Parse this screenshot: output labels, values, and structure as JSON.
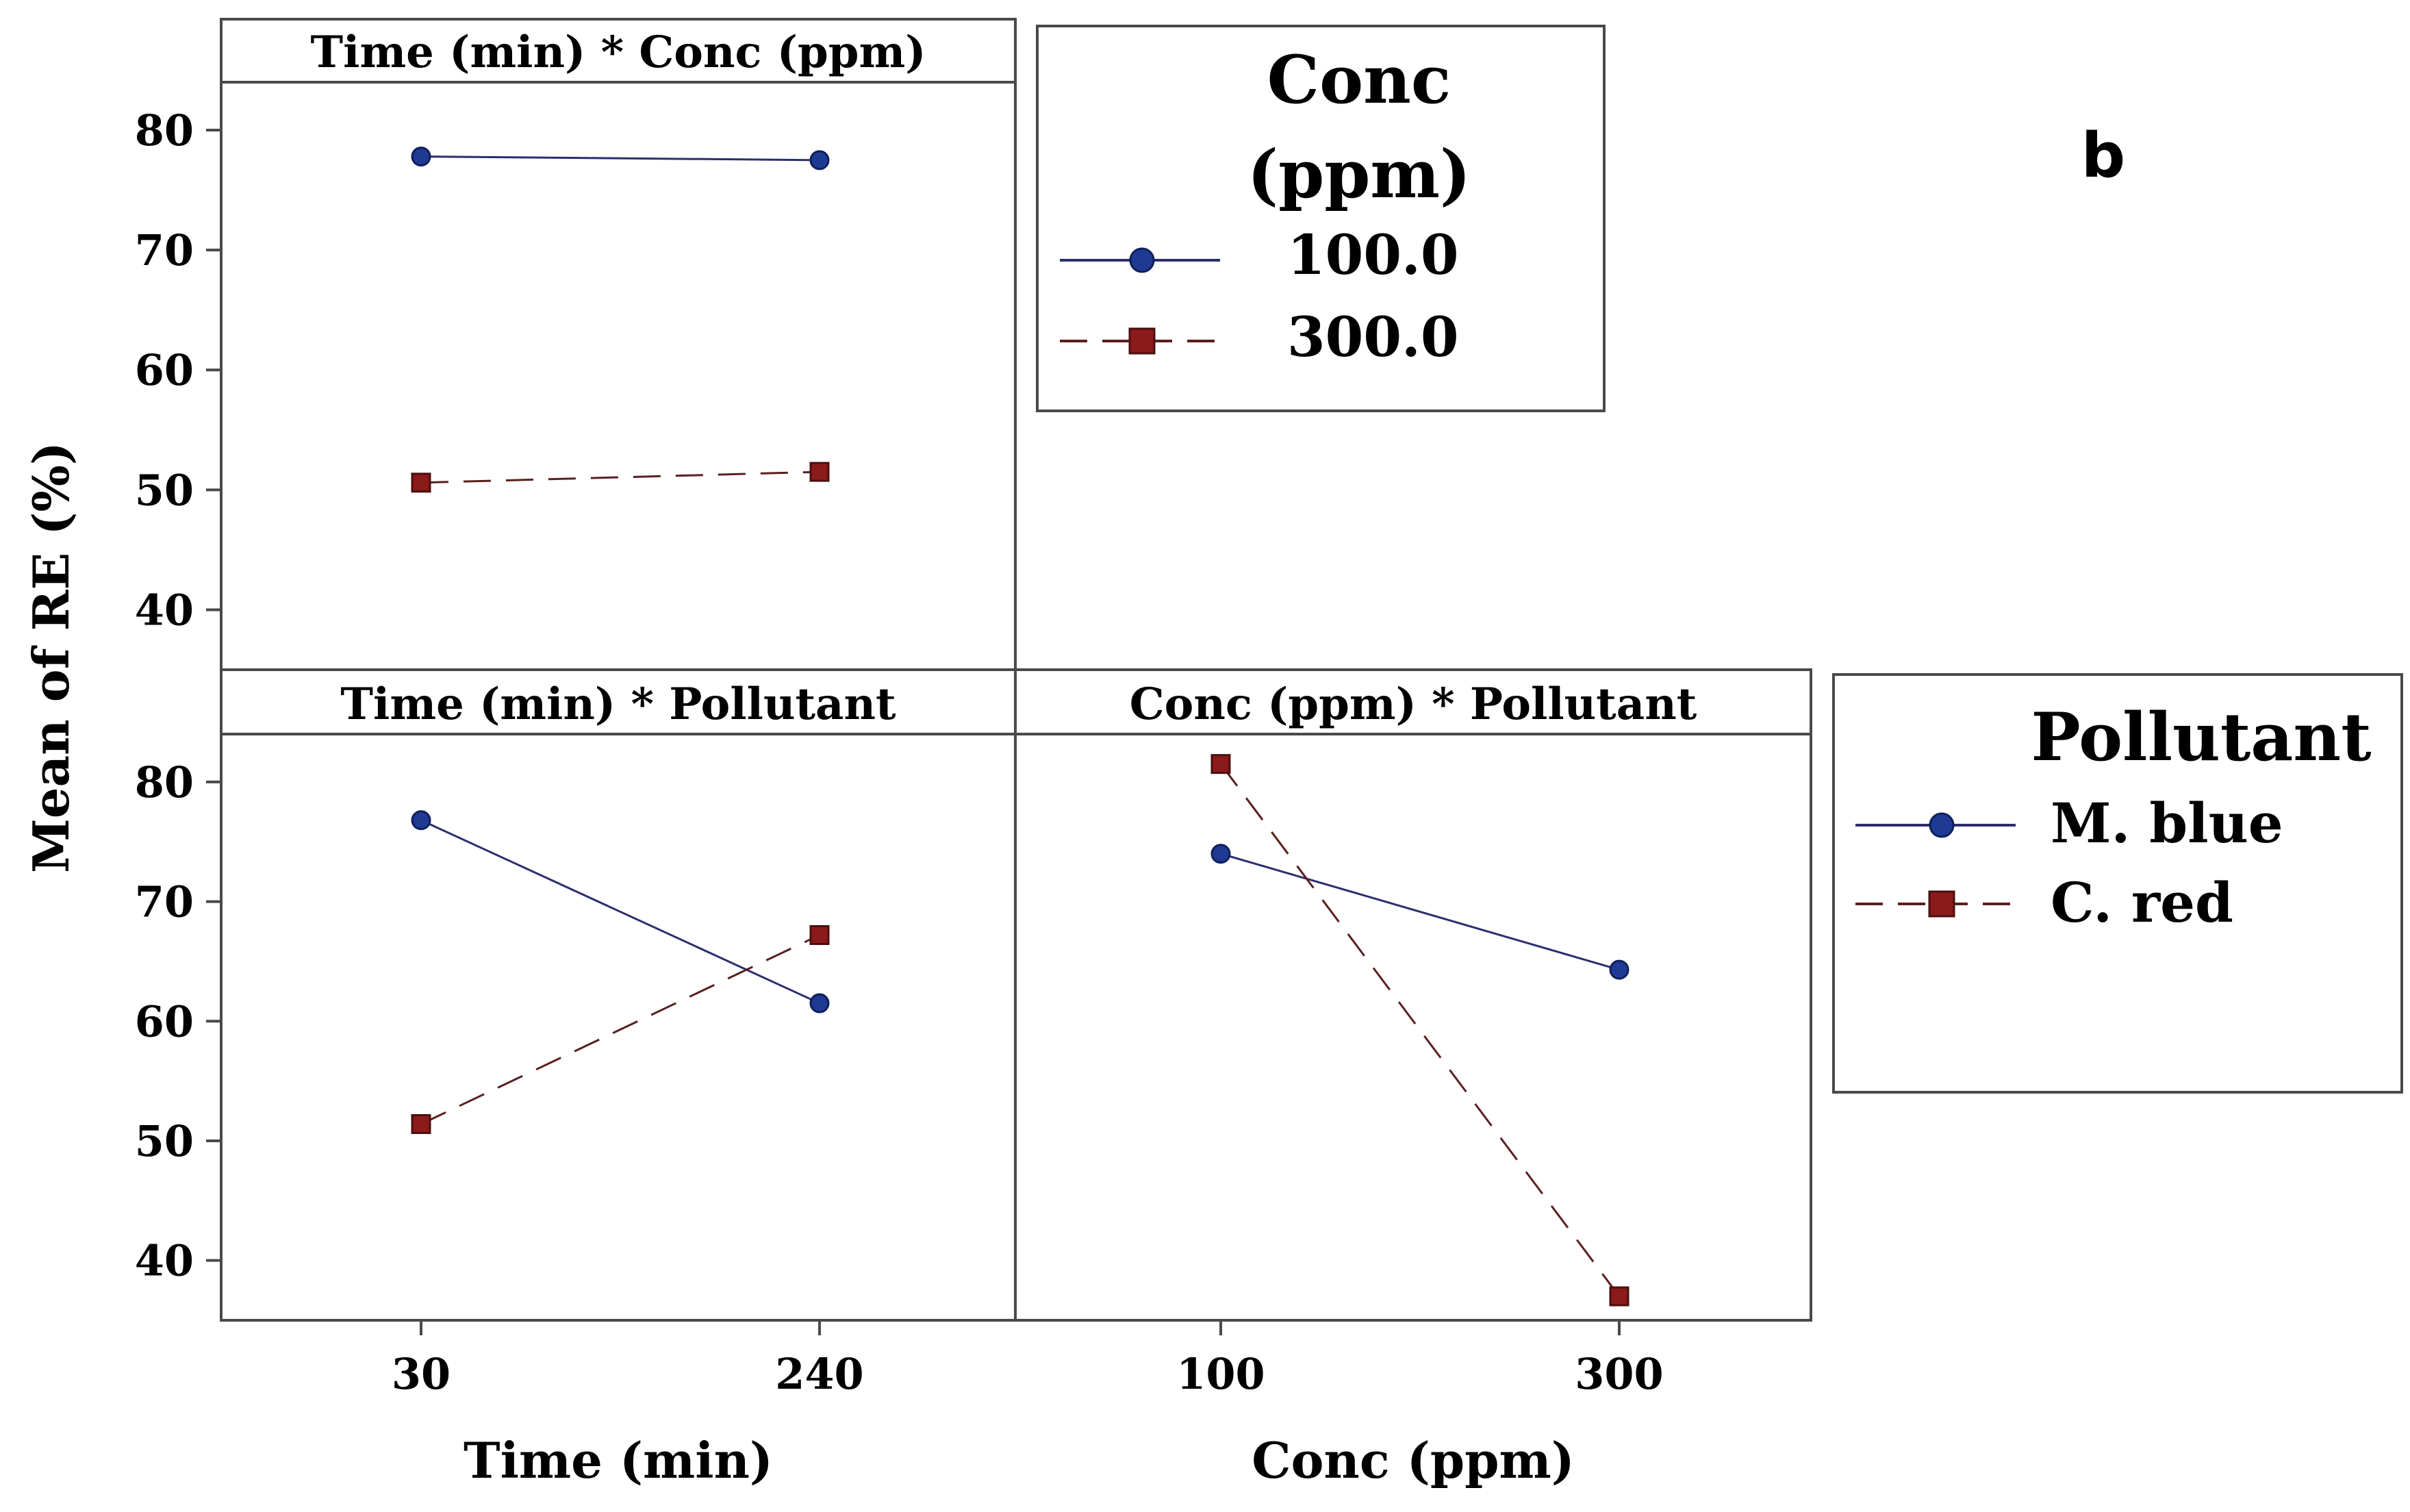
{
  "figure": {
    "panel_label": "b",
    "ylabel": "Mean of RE (%)"
  },
  "chart_data": [
    {
      "type": "line",
      "id": "time-conc",
      "title": "Time (min) * Conc (ppm)",
      "categories": [
        "30",
        "240"
      ],
      "ylim": [
        35,
        84
      ],
      "yticks": [
        40,
        50,
        60,
        70,
        80
      ],
      "series": [
        {
          "name": "100.0",
          "values": [
            77.8,
            77.5
          ],
          "style": "solid",
          "marker": "circle",
          "color": "#1f3a93",
          "line_color": "#2b2f6e"
        },
        {
          "name": "300.0",
          "values": [
            50.6,
            51.5
          ],
          "style": "dashed",
          "marker": "square",
          "color": "#8b1a1a",
          "line_color": "#5a1f1f"
        }
      ]
    },
    {
      "type": "line",
      "id": "time-pollutant",
      "title": "Time (min) * Pollutant",
      "categories": [
        "30",
        "240"
      ],
      "xlabel": "Time (min)",
      "ylim": [
        35,
        84
      ],
      "yticks": [
        40,
        50,
        60,
        70,
        80
      ],
      "series": [
        {
          "name": "M. blue",
          "values": [
            76.8,
            61.5
          ],
          "style": "solid",
          "marker": "circle",
          "color": "#1f3a93",
          "line_color": "#2b2f6e"
        },
        {
          "name": "C. red",
          "values": [
            51.4,
            67.2
          ],
          "style": "dashed",
          "marker": "square",
          "color": "#8b1a1a",
          "line_color": "#5a1f1f"
        }
      ]
    },
    {
      "type": "line",
      "id": "conc-pollutant",
      "title": "Conc (ppm) * Pollutant",
      "categories": [
        "100",
        "300"
      ],
      "xlabel": "Conc (ppm)",
      "ylim": [
        35,
        84
      ],
      "series": [
        {
          "name": "M. blue",
          "values": [
            74.0,
            64.3
          ],
          "style": "solid",
          "marker": "circle",
          "color": "#1f3a93",
          "line_color": "#2b2f6e"
        },
        {
          "name": "C. red",
          "values": [
            81.5,
            37.0
          ],
          "style": "dashed",
          "marker": "square",
          "color": "#8b1a1a",
          "line_color": "#5a1f1f"
        }
      ]
    }
  ],
  "legends": {
    "conc": {
      "title_line1": "Conc",
      "title_line2": "(ppm)",
      "entries": [
        {
          "label": "100.0",
          "style": "solid",
          "marker": "circle",
          "color": "#1f3a93"
        },
        {
          "label": "300.0",
          "style": "dashed",
          "marker": "square",
          "color": "#8b1a1a"
        }
      ]
    },
    "pollutant": {
      "title": "Pollutant",
      "entries": [
        {
          "label": "M. blue",
          "style": "solid",
          "marker": "circle",
          "color": "#1f3a93"
        },
        {
          "label": "C. red",
          "style": "dashed",
          "marker": "square",
          "color": "#8b1a1a"
        }
      ]
    }
  }
}
